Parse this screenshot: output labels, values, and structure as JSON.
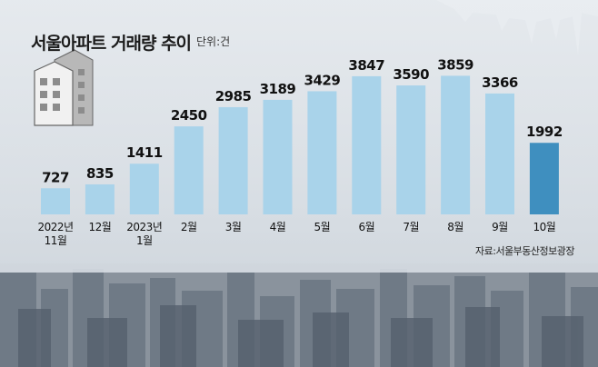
{
  "chart_data": {
    "type": "bar",
    "title": "서울아파트 거래량 추이",
    "unit": "단위:건",
    "source": "자료:서울부동산정보광장",
    "categories": [
      "2022년 11월",
      "12월",
      "2023년 1월",
      "2월",
      "3월",
      "4월",
      "5월",
      "6월",
      "7월",
      "8월",
      "9월",
      "10월"
    ],
    "category_lines": [
      [
        "2022년",
        "11월"
      ],
      [
        "12월"
      ],
      [
        "2023년",
        "1월"
      ],
      [
        "2월"
      ],
      [
        "3월"
      ],
      [
        "4월"
      ],
      [
        "5월"
      ],
      [
        "6월"
      ],
      [
        "7월"
      ],
      [
        "8월"
      ],
      [
        "9월"
      ],
      [
        "10월"
      ]
    ],
    "values": [
      727,
      835,
      1411,
      2450,
      2985,
      3189,
      3429,
      3847,
      3590,
      3859,
      3366,
      1992
    ],
    "ylim": [
      0,
      4300
    ],
    "bar_color": "#a9d3ea",
    "highlight_color": "#3f8fbf",
    "highlight_index": 11,
    "grid": false
  },
  "decor": {
    "building_icon": "apartment-building-icon",
    "background": "city-skyline-photo",
    "icicles": "icicles"
  }
}
